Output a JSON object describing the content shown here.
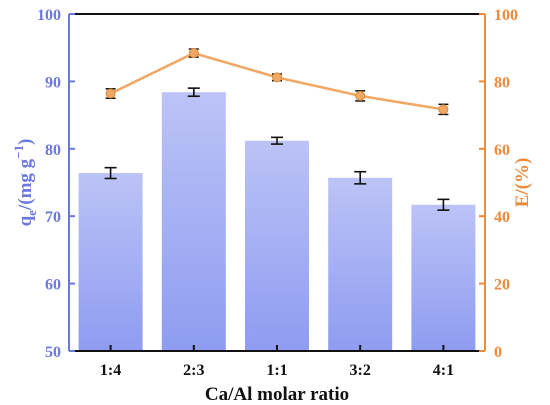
{
  "chart_data": {
    "type": "bar+line",
    "categories": [
      "1:4",
      "2:3",
      "1:1",
      "3:2",
      "4:1"
    ],
    "xlabel": "Ca/Al molar ratio",
    "ylabel_left": {
      "base": "q",
      "sub": "e",
      "rest": "/(mg g",
      "sup": "−1",
      "close": ")"
    },
    "ylabel_right": "E/(%)",
    "left_axis": {
      "ylim": [
        50,
        100
      ],
      "ticks": [
        50,
        60,
        70,
        80,
        90,
        100
      ]
    },
    "right_axis": {
      "ylim": [
        0,
        100
      ],
      "ticks": [
        0,
        20,
        40,
        60,
        80,
        100
      ]
    },
    "series": [
      {
        "type": "bar",
        "axis": "left",
        "values": [
          76.4,
          88.4,
          81.2,
          75.7,
          71.7
        ],
        "errors": [
          0.8,
          0.6,
          0.5,
          0.9,
          0.8
        ]
      },
      {
        "type": "line",
        "axis": "right",
        "values": [
          76.4,
          88.4,
          81.2,
          75.7,
          71.7
        ],
        "errors": [
          1.4,
          1.2,
          1.0,
          1.5,
          1.5
        ]
      }
    ],
    "colors": {
      "bar_top": "#bcc3f6",
      "bar_bottom": "#8e9cf1",
      "line": "#f0a864",
      "left_axis": "#6b78e0",
      "right_axis": "#ee8a3c",
      "frame": "#111111"
    },
    "grid": false,
    "legend": "none"
  }
}
